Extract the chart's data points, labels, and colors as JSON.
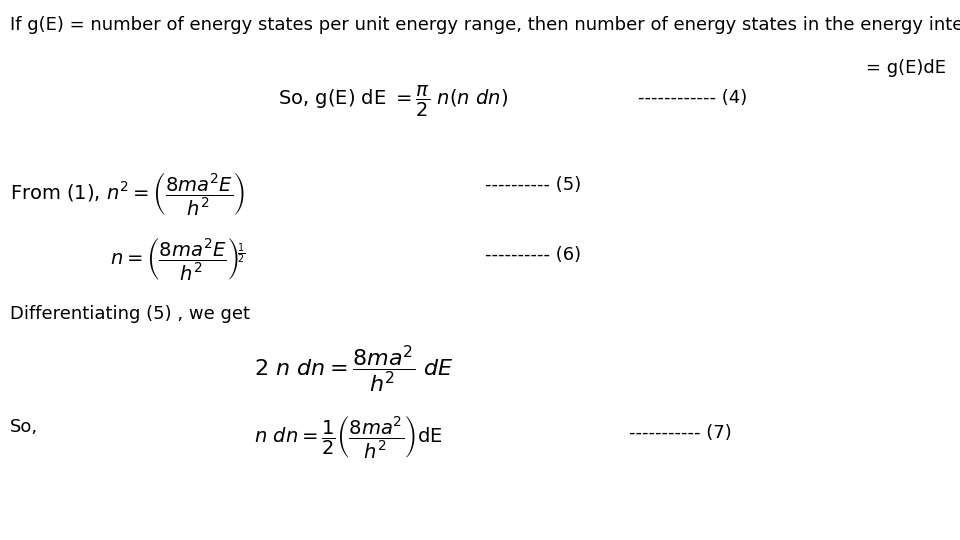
{
  "bg_color": "#ffffff",
  "text_color": "#000000",
  "figsize": [
    9.6,
    5.4
  ],
  "dpi": 100,
  "line1": "If g(E) = number of energy states per unit energy range, then number of energy states in the energy interval dE",
  "line1_cont": "= g(E)dE",
  "eq4_dashes": "------------ (4)",
  "eq5_dashes": "---------- (5)",
  "eq6_dashes": "---------- (6)",
  "diff_text": "Differentiating (5) , we get",
  "so_text": "So,",
  "eq7_dashes": "----------- (7)"
}
